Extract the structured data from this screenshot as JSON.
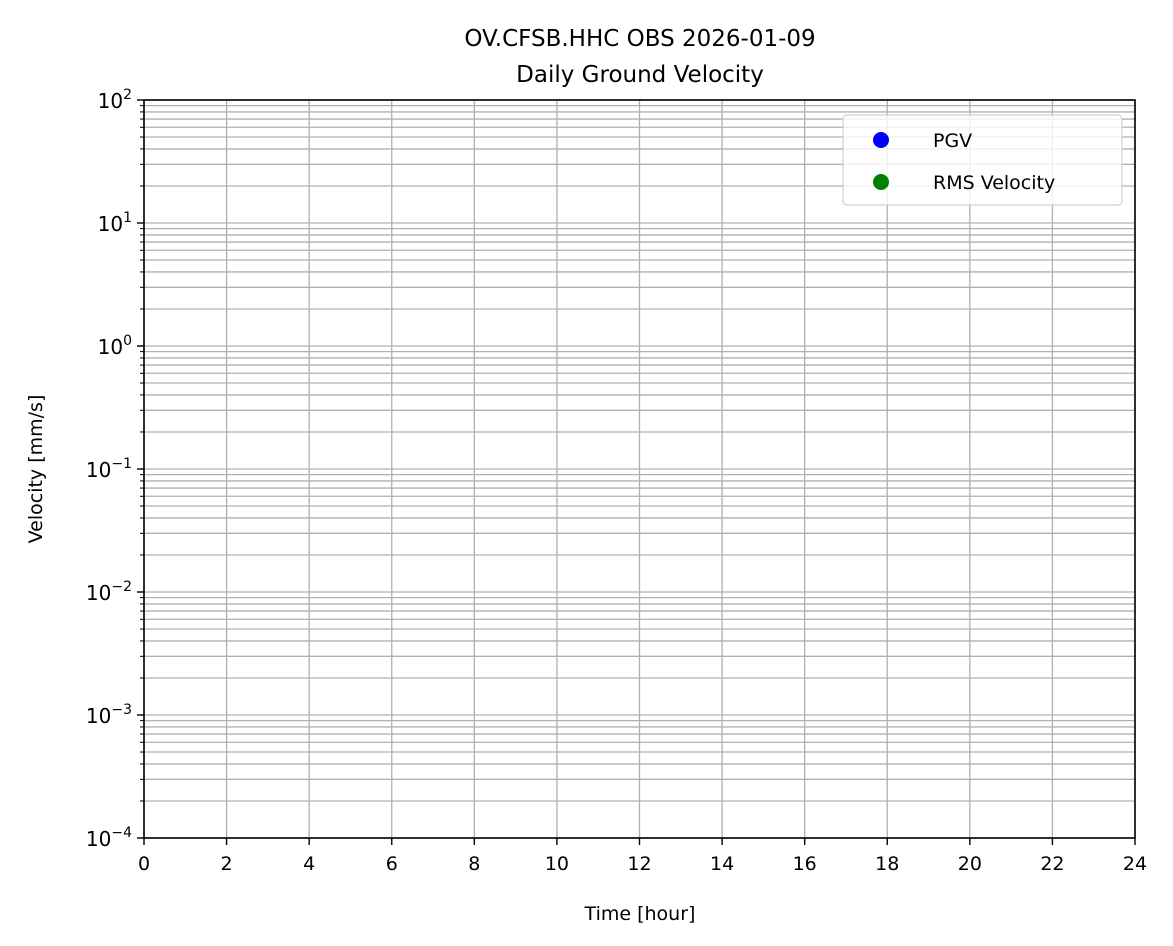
{
  "chart_data": {
    "type": "scatter",
    "title": "OV.CFSB.HHC OBS 2026-01-09",
    "subtitle": "Daily Ground Velocity",
    "xlabel": "Time [hour]",
    "ylabel": "Velocity [mm/s]",
    "xlim": [
      0,
      24
    ],
    "ylim": [
      0.0001,
      100
    ],
    "yscale": "log",
    "grid": "on (major and minor)",
    "xticks": [
      0,
      2,
      4,
      6,
      8,
      10,
      12,
      14,
      16,
      18,
      20,
      22,
      24
    ],
    "yticks": [
      {
        "base": "10",
        "exp": "−4"
      },
      {
        "base": "10",
        "exp": "−3"
      },
      {
        "base": "10",
        "exp": "−2"
      },
      {
        "base": "10",
        "exp": "−1"
      },
      {
        "base": "10",
        "exp": "0"
      },
      {
        "base": "10",
        "exp": "1"
      },
      {
        "base": "10",
        "exp": "2"
      }
    ],
    "legend_position": "top-right",
    "series": [
      {
        "name": "PGV",
        "color": "#0000ff",
        "x": [],
        "y": []
      },
      {
        "name": "RMS Velocity",
        "color": "#008000",
        "x": [],
        "y": []
      }
    ]
  }
}
